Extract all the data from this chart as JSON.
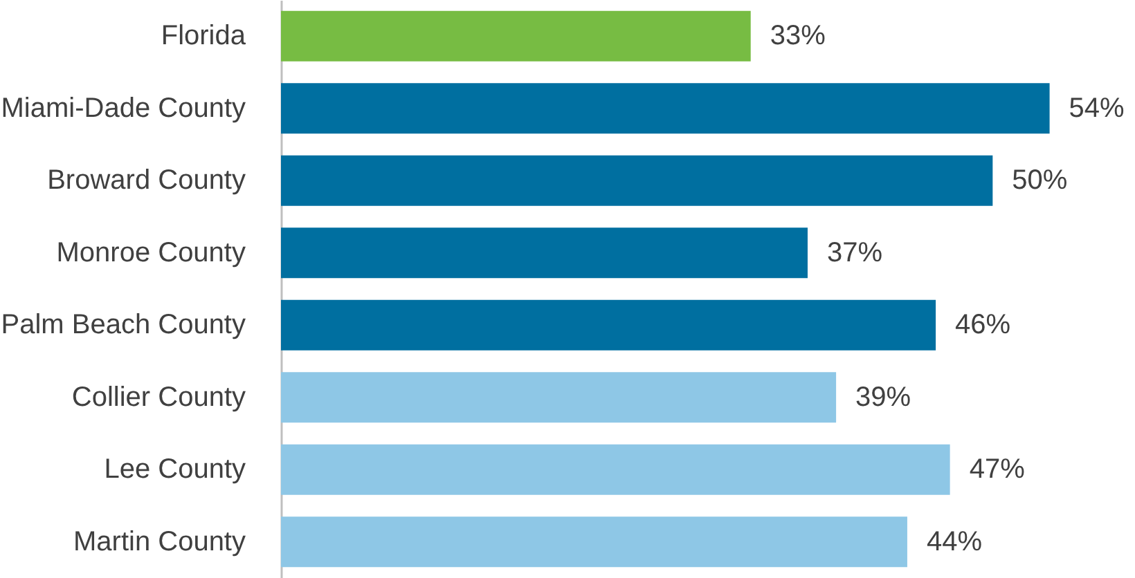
{
  "chart_data": {
    "type": "bar",
    "orientation": "horizontal",
    "categories": [
      "Florida",
      "Miami-Dade County",
      "Broward County",
      "Monroe County",
      "Palm Beach County",
      "Collier County",
      "Lee County",
      "Martin County"
    ],
    "values": [
      33,
      54,
      50,
      37,
      46,
      39,
      47,
      44
    ],
    "value_labels": [
      "33%",
      "54%",
      "50%",
      "37%",
      "46%",
      "39%",
      "47%",
      "44%"
    ],
    "colors": [
      "#77bc43",
      "#006fa0",
      "#006fa0",
      "#006fa0",
      "#006fa0",
      "#8ec7e6",
      "#8ec7e6",
      "#8ec7e6"
    ],
    "xlim": [
      0,
      60
    ],
    "tick_labels": "y",
    "grid": false
  }
}
